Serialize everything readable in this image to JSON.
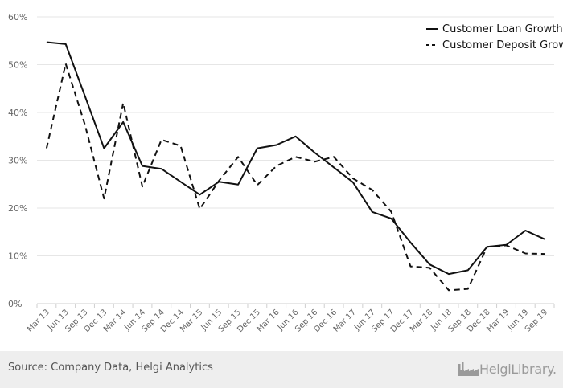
{
  "chart_data": {
    "type": "line",
    "title": "",
    "xlabel": "",
    "ylabel": "",
    "ylim": [
      0,
      60
    ],
    "yticks": [
      "0%",
      "10%",
      "20%",
      "30%",
      "40%",
      "50%",
      "60%"
    ],
    "grid": true,
    "legend_position": "top-right",
    "categories": [
      "Mar 13",
      "Jun 13",
      "Sep 13",
      "Dec 13",
      "Mar 14",
      "Jun 14",
      "Sep 14",
      "Dec 14",
      "Mar 15",
      "Jun 15",
      "Sep 15",
      "Dec 15",
      "Mar 16",
      "Jun 16",
      "Sep 16",
      "Dec 16",
      "Mar 17",
      "Jun 17",
      "Sep 17",
      "Dec 17",
      "Mar 18",
      "Jun 18",
      "Sep 18",
      "Dec 18",
      "Mar 19",
      "Jun 19",
      "Sep 19"
    ],
    "series": [
      {
        "name": "Customer Loan Growth",
        "style": "solid",
        "color": "#111111",
        "values": [
          54.7,
          54.3,
          43.5,
          32.5,
          38.0,
          28.8,
          28.2,
          25.5,
          22.8,
          25.5,
          24.9,
          32.5,
          33.2,
          35.0,
          31.6,
          28.5,
          25.4,
          19.2,
          17.8,
          12.8,
          8.2,
          6.2,
          7.0,
          11.9,
          12.3,
          15.3,
          13.5
        ]
      },
      {
        "name": "Customer Deposit Growth",
        "style": "dashed",
        "color": "#111111",
        "values": [
          32.5,
          50.2,
          37.5,
          22.0,
          42.0,
          24.5,
          34.3,
          33.0,
          19.8,
          25.7,
          30.7,
          24.8,
          28.8,
          30.7,
          29.7,
          30.7,
          26.2,
          23.8,
          19.2,
          7.8,
          7.5,
          2.8,
          3.1,
          11.9,
          12.2,
          10.5,
          10.4
        ]
      }
    ]
  },
  "footer": {
    "source": "Source: Company Data, Helgi Analytics",
    "logo_text": "HelgiLibrary.",
    "logo_icon": "factory-icon"
  }
}
